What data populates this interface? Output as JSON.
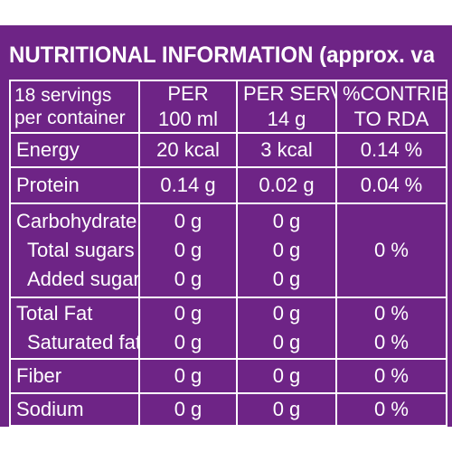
{
  "title": "NUTRITIONAL INFORMATION (approx. values)",
  "header": {
    "servings_line1": "18 servings",
    "servings_line2": "per container",
    "per_line1": "PER",
    "per_line2": "100 ml",
    "serving_line1": "PER SERVING",
    "serving_line2": "14 g",
    "rda_line1": "%CONTRIBUTION",
    "rda_line2": "TO RDA"
  },
  "rows": {
    "energy": {
      "label": "Energy",
      "per100": "20 kcal",
      "serving": "3 kcal",
      "rda": "0.14 %"
    },
    "protein": {
      "label": "Protein",
      "per100": "0.14 g",
      "serving": "0.02 g",
      "rda": "0.04 %"
    },
    "carb": {
      "label": "Carbohydrate",
      "per100": "0 g",
      "serving": "0 g",
      "total_sugars_label": "Total sugars",
      "total_sugars_per100": "0 g",
      "total_sugars_serving": "0 g",
      "added_sugars_label": "Added sugars",
      "added_sugars_per100": "0 g",
      "added_sugars_serving": "0 g",
      "rda": "0 %"
    },
    "fat": {
      "label": "Total Fat",
      "per100": "0 g",
      "serving": "0 g",
      "rda": "0 %",
      "sat_label": "Saturated fat",
      "sat_per100": "0 g",
      "sat_serving": "0 g",
      "sat_rda": "0 %"
    },
    "fiber": {
      "label": "Fiber",
      "per100": "0 g",
      "serving": "0 g",
      "rda": "0 %"
    },
    "sodium": {
      "label": "Sodium",
      "per100": "0 g",
      "serving": "0 g",
      "rda": "0 %"
    }
  },
  "colors": {
    "background": "#6e2486",
    "text": "#ffffff"
  }
}
